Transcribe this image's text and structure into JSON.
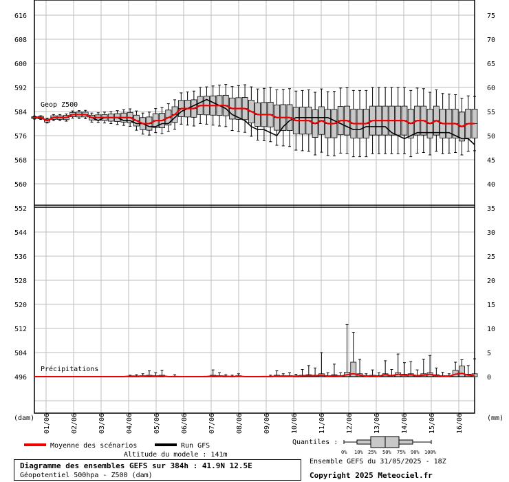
{
  "chart_data": {
    "type": "ensemble-boxplot",
    "title": "Diagramme des ensembles GEFS sur 384h : 41.9N 12.5E",
    "subtitle": "Géopotentiel 500hpa - Z500 (dam)",
    "left_axis_unit": "(dam)",
    "right_axis_unit": "(mm)",
    "x_tick_labels": [
      "01/06",
      "02/06",
      "03/06",
      "04/06",
      "05/06",
      "06/06",
      "07/06",
      "08/06",
      "09/06",
      "10/06",
      "11/06",
      "12/06",
      "13/06",
      "14/06",
      "15/06",
      "16/06"
    ],
    "upper_panel": {
      "label": "Geop Z500",
      "left_ticks": [
        616,
        608,
        600,
        592,
        584,
        576,
        568,
        560
      ],
      "right_ticks": [
        75,
        70,
        65,
        60,
        55,
        50,
        45,
        40
      ],
      "ylim": [
        550.4,
        621.2
      ],
      "mean": [
        582,
        582,
        581,
        582,
        582,
        582,
        583,
        583,
        583,
        582,
        582,
        582,
        582,
        582,
        582,
        582,
        581,
        580,
        580,
        581,
        581,
        582,
        583,
        585,
        585,
        585,
        586,
        586,
        586,
        586,
        586,
        585,
        585,
        585,
        584,
        583,
        583,
        583,
        582,
        582,
        582,
        581,
        581,
        581,
        580,
        581,
        580,
        580,
        581,
        581,
        580,
        580,
        580,
        581,
        581,
        581,
        581,
        581,
        581,
        580,
        581,
        581,
        580,
        581,
        580,
        580,
        580,
        579,
        580,
        580
      ],
      "gfs": [
        582,
        582,
        581,
        582,
        582,
        582,
        583,
        583,
        583,
        582,
        581,
        582,
        582,
        582,
        581,
        581,
        580,
        580,
        579,
        579,
        580,
        580,
        582,
        584,
        585,
        586,
        587,
        588,
        587,
        586,
        585,
        583,
        582,
        581,
        579,
        578,
        578,
        577,
        576,
        579,
        581,
        582,
        582,
        582,
        582,
        582,
        582,
        581,
        580,
        579,
        578,
        578,
        579,
        579,
        579,
        579,
        577,
        576,
        575,
        576,
        577,
        577,
        577,
        577,
        577,
        577,
        576,
        575,
        575,
        573
      ],
      "half_box": [
        0.3,
        0.4,
        0.5,
        0.6,
        0.6,
        0.7,
        0.7,
        0.8,
        0.8,
        0.8,
        0.9,
        1.0,
        1.2,
        1.3,
        1.5,
        1.7,
        1.8,
        2.0,
        2.2,
        2.3,
        2.4,
        2.5,
        2.6,
        2.7,
        2.8,
        2.9,
        3.0,
        3.1,
        3.2,
        3.3,
        3.4,
        3.5,
        3.6,
        3.7,
        3.8,
        3.9,
        4.0,
        4.1,
        4.2,
        4.3,
        4.3,
        4.4,
        4.5,
        4.5,
        4.6,
        4.6,
        4.7,
        4.7,
        4.7,
        4.8,
        4.8,
        4.8,
        4.8,
        4.8,
        4.8,
        4.8,
        4.8,
        4.8,
        4.8,
        4.8,
        4.8,
        4.8,
        4.8,
        4.8,
        4.8,
        4.8,
        4.8,
        4.8,
        4.8,
        4.8
      ],
      "half_whisker": [
        0.5,
        0.6,
        0.8,
        1.0,
        1.0,
        1.2,
        1.2,
        1.3,
        1.4,
        1.5,
        1.6,
        1.8,
        2.0,
        2.3,
        2.6,
        2.9,
        3.2,
        3.5,
        3.8,
        4.0,
        4.3,
        4.6,
        4.9,
        5.2,
        5.5,
        5.8,
        6.0,
        6.2,
        6.5,
        6.8,
        7.0,
        7.3,
        7.6,
        7.9,
        8.2,
        8.5,
        8.7,
        9.0,
        9.2,
        9.4,
        9.6,
        9.8,
        10.0,
        10.2,
        10.4,
        10.5,
        10.6,
        10.7,
        10.8,
        10.9,
        11.0,
        11.0,
        11.0,
        11.0,
        11.0,
        11.0,
        11.0,
        11.0,
        11.0,
        11.0,
        10.8,
        10.6,
        10.4,
        10.2,
        10.0,
        9.8,
        9.6,
        9.4,
        9.2,
        9.0
      ]
    },
    "lower_panel": {
      "label": "Précipitations",
      "left_ticks": [
        552,
        544,
        536,
        528,
        520,
        512,
        504,
        496
      ],
      "right_ticks": [
        35,
        30,
        25,
        20,
        15,
        10,
        5,
        0
      ],
      "ylim": [
        -8,
        35
      ],
      "whisker_top_mm": [
        0,
        0,
        0,
        0,
        0,
        0,
        0,
        0,
        0,
        0,
        0,
        0,
        0,
        0,
        0,
        0.3,
        0.4,
        0.6,
        1.2,
        0.8,
        1.3,
        0.2,
        0.4,
        0.1,
        0.2,
        0,
        0,
        0.2,
        1.4,
        0.8,
        0.4,
        0.3,
        0.6,
        0.2,
        0.2,
        0,
        0.2,
        0.3,
        1.2,
        0.6,
        0.8,
        0.5,
        1.5,
        2.3,
        1.8,
        5,
        0.8,
        2.6,
        0.8,
        10.8,
        9.2,
        3.6,
        0.6,
        1.4,
        0.8,
        3.3,
        1.5,
        4.7,
        2.9,
        3.1,
        1.4,
        3.6,
        4.4,
        1.8,
        0.9,
        0.6,
        3.0,
        3.5,
        2.3,
        3.7
      ],
      "box_top_mm": [
        0,
        0,
        0,
        0,
        0,
        0,
        0,
        0,
        0,
        0,
        0,
        0,
        0,
        0,
        0,
        0.1,
        0.1,
        0.2,
        0.3,
        0.2,
        0.3,
        0,
        0.1,
        0,
        0,
        0,
        0,
        0.1,
        0.3,
        0.2,
        0.1,
        0.1,
        0.2,
        0,
        0,
        0,
        0.1,
        0.1,
        0.3,
        0.2,
        0.2,
        0.1,
        0.3,
        0.4,
        0.3,
        0.6,
        0.2,
        0.4,
        0.2,
        0.9,
        3.0,
        0.6,
        0.2,
        0.3,
        0.2,
        0.6,
        0.3,
        0.8,
        0.5,
        0.6,
        0.3,
        0.6,
        0.8,
        0.4,
        0.2,
        0.2,
        1.3,
        2.2,
        0.5,
        0.6
      ],
      "mean_mm": [
        0,
        0,
        0,
        0,
        0,
        0,
        0,
        0,
        0,
        0,
        0,
        0,
        0,
        0,
        0,
        0.1,
        0.1,
        0.1,
        0.2,
        0.1,
        0.2,
        0,
        0,
        0,
        0,
        0,
        0,
        0,
        0.2,
        0.1,
        0.1,
        0,
        0.1,
        0,
        0,
        0,
        0,
        0,
        0.1,
        0.1,
        0.1,
        0.1,
        0.2,
        0.2,
        0.2,
        0.3,
        0.1,
        0.2,
        0.1,
        0.4,
        0.6,
        0.3,
        0.1,
        0.2,
        0.1,
        0.4,
        0.2,
        0.5,
        0.3,
        0.4,
        0.2,
        0.3,
        0.5,
        0.2,
        0.1,
        0.1,
        0.5,
        0.7,
        0.3,
        0.3
      ]
    },
    "legend": {
      "mean_label": "Moyenne des scénarios",
      "gfs_label": "Run GFS",
      "mean_color": "#ee0000",
      "gfs_color": "#000000",
      "box_color": "#c8c8c8",
      "quantiles_label": "Quantiles :",
      "quantile_ticks": [
        "0%",
        "10%",
        "25%",
        "50%",
        "75%",
        "90%",
        "100%"
      ]
    },
    "model_altitude": "Altitude du modele : 141m",
    "run_info": "Ensemble GEFS du 31/05/2025 - 18Z",
    "copyright": "Copyright 2025 Meteociel.fr"
  }
}
